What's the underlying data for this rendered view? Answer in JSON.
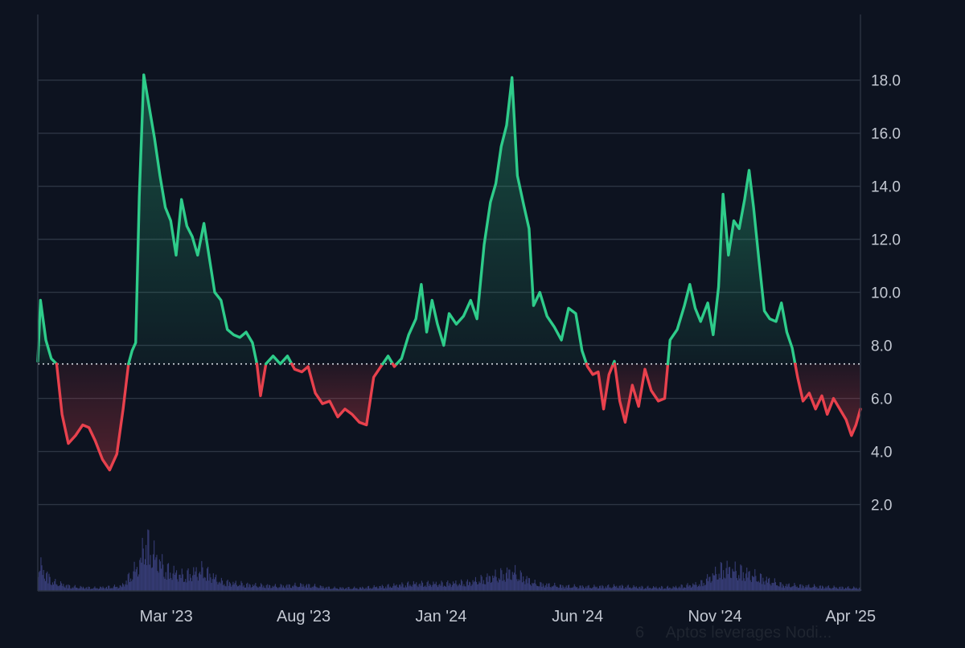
{
  "colors": {
    "background": "#0d1320",
    "above_baseline": "#2ecc8a",
    "below_baseline": "#e8414d",
    "volume": "#353b73",
    "grid": "#2d3543",
    "tick_text": "#c3c8d2"
  },
  "chart_data": {
    "type": "line",
    "subtype": "baseline-area",
    "baseline_value": 7.3,
    "y_axis_position": "right",
    "ylim": [
      0,
      20
    ],
    "y_ticks": [
      "2.0",
      "4.0",
      "6.0",
      "8.0",
      "10.0",
      "12.0",
      "14.0",
      "16.0",
      "18.0"
    ],
    "x_tick_labels": [
      "Mar '23",
      "Aug '23",
      "Jan '24",
      "Jun '24",
      "Nov '24",
      "Apr '25"
    ],
    "x_tick_months": [
      "2023-03",
      "2023-08",
      "2024-01",
      "2024-06",
      "2024-11",
      "2025-04"
    ],
    "x_range": [
      "2022-10-09",
      "2025-04-12"
    ],
    "grid": "horizontal",
    "series": [
      {
        "values_kind": "price",
        "points": [
          [
            "2022-10-09",
            7.4
          ],
          [
            "2022-10-12",
            9.7
          ],
          [
            "2022-10-18",
            8.2
          ],
          [
            "2022-10-24",
            7.5
          ],
          [
            "2022-10-30",
            7.3
          ],
          [
            "2022-11-05",
            5.4
          ],
          [
            "2022-11-12",
            4.3
          ],
          [
            "2022-11-20",
            4.6
          ],
          [
            "2022-11-28",
            5.0
          ],
          [
            "2022-12-05",
            4.9
          ],
          [
            "2022-12-12",
            4.4
          ],
          [
            "2022-12-20",
            3.7
          ],
          [
            "2022-12-28",
            3.3
          ],
          [
            "2023-01-05",
            3.9
          ],
          [
            "2023-01-12",
            5.6
          ],
          [
            "2023-01-18",
            7.3
          ],
          [
            "2023-01-22",
            7.8
          ],
          [
            "2023-01-26",
            8.1
          ],
          [
            "2023-01-30",
            13.6
          ],
          [
            "2023-02-04",
            18.2
          ],
          [
            "2023-02-10",
            17.0
          ],
          [
            "2023-02-16",
            15.8
          ],
          [
            "2023-02-22",
            14.4
          ],
          [
            "2023-02-28",
            13.2
          ],
          [
            "2023-03-06",
            12.7
          ],
          [
            "2023-03-12",
            11.4
          ],
          [
            "2023-03-18",
            13.5
          ],
          [
            "2023-03-24",
            12.5
          ],
          [
            "2023-03-30",
            12.1
          ],
          [
            "2023-04-05",
            11.4
          ],
          [
            "2023-04-12",
            12.6
          ],
          [
            "2023-04-18",
            11.3
          ],
          [
            "2023-04-24",
            10.0
          ],
          [
            "2023-05-01",
            9.7
          ],
          [
            "2023-05-08",
            8.6
          ],
          [
            "2023-05-15",
            8.4
          ],
          [
            "2023-05-22",
            8.3
          ],
          [
            "2023-05-29",
            8.5
          ],
          [
            "2023-06-05",
            8.1
          ],
          [
            "2023-06-10",
            7.3
          ],
          [
            "2023-06-14",
            6.1
          ],
          [
            "2023-06-20",
            7.3
          ],
          [
            "2023-06-28",
            7.6
          ],
          [
            "2023-07-06",
            7.3
          ],
          [
            "2023-07-14",
            7.6
          ],
          [
            "2023-07-22",
            7.1
          ],
          [
            "2023-07-30",
            7.0
          ],
          [
            "2023-08-06",
            7.2
          ],
          [
            "2023-08-14",
            6.2
          ],
          [
            "2023-08-22",
            5.8
          ],
          [
            "2023-08-30",
            5.9
          ],
          [
            "2023-09-08",
            5.3
          ],
          [
            "2023-09-16",
            5.6
          ],
          [
            "2023-09-24",
            5.4
          ],
          [
            "2023-10-02",
            5.1
          ],
          [
            "2023-10-10",
            5.0
          ],
          [
            "2023-10-18",
            6.8
          ],
          [
            "2023-10-26",
            7.2
          ],
          [
            "2023-11-03",
            7.6
          ],
          [
            "2023-11-10",
            7.2
          ],
          [
            "2023-11-18",
            7.5
          ],
          [
            "2023-11-26",
            8.4
          ],
          [
            "2023-12-04",
            9.0
          ],
          [
            "2023-12-10",
            10.3
          ],
          [
            "2023-12-16",
            8.5
          ],
          [
            "2023-12-22",
            9.7
          ],
          [
            "2023-12-28",
            8.8
          ],
          [
            "2024-01-04",
            8.0
          ],
          [
            "2024-01-10",
            9.2
          ],
          [
            "2024-01-18",
            8.8
          ],
          [
            "2024-01-26",
            9.1
          ],
          [
            "2024-02-03",
            9.7
          ],
          [
            "2024-02-10",
            9.0
          ],
          [
            "2024-02-18",
            11.8
          ],
          [
            "2024-02-25",
            13.4
          ],
          [
            "2024-03-02",
            14.1
          ],
          [
            "2024-03-08",
            15.5
          ],
          [
            "2024-03-14",
            16.3
          ],
          [
            "2024-03-20",
            18.1
          ],
          [
            "2024-03-26",
            14.4
          ],
          [
            "2024-04-02",
            13.3
          ],
          [
            "2024-04-08",
            12.4
          ],
          [
            "2024-04-13",
            9.5
          ],
          [
            "2024-04-20",
            10.0
          ],
          [
            "2024-04-28",
            9.1
          ],
          [
            "2024-05-06",
            8.7
          ],
          [
            "2024-05-14",
            8.2
          ],
          [
            "2024-05-22",
            9.4
          ],
          [
            "2024-05-30",
            9.2
          ],
          [
            "2024-06-06",
            7.8
          ],
          [
            "2024-06-12",
            7.2
          ],
          [
            "2024-06-18",
            6.9
          ],
          [
            "2024-06-24",
            7.0
          ],
          [
            "2024-06-30",
            5.6
          ],
          [
            "2024-07-06",
            6.9
          ],
          [
            "2024-07-12",
            7.4
          ],
          [
            "2024-07-18",
            5.9
          ],
          [
            "2024-07-24",
            5.1
          ],
          [
            "2024-08-01",
            6.5
          ],
          [
            "2024-08-08",
            5.7
          ],
          [
            "2024-08-15",
            7.1
          ],
          [
            "2024-08-22",
            6.3
          ],
          [
            "2024-08-30",
            5.9
          ],
          [
            "2024-09-06",
            6.0
          ],
          [
            "2024-09-12",
            8.2
          ],
          [
            "2024-09-20",
            8.6
          ],
          [
            "2024-09-28",
            9.5
          ],
          [
            "2024-10-04",
            10.3
          ],
          [
            "2024-10-10",
            9.4
          ],
          [
            "2024-10-16",
            8.9
          ],
          [
            "2024-10-24",
            9.6
          ],
          [
            "2024-10-30",
            8.4
          ],
          [
            "2024-11-05",
            10.2
          ],
          [
            "2024-11-10",
            13.7
          ],
          [
            "2024-11-16",
            11.4
          ],
          [
            "2024-11-22",
            12.7
          ],
          [
            "2024-11-28",
            12.4
          ],
          [
            "2024-12-04",
            13.5
          ],
          [
            "2024-12-09",
            14.6
          ],
          [
            "2024-12-14",
            13.2
          ],
          [
            "2024-12-20",
            11.2
          ],
          [
            "2024-12-26",
            9.3
          ],
          [
            "2025-01-01",
            9.0
          ],
          [
            "2025-01-08",
            8.9
          ],
          [
            "2025-01-14",
            9.6
          ],
          [
            "2025-01-20",
            8.5
          ],
          [
            "2025-01-26",
            7.9
          ],
          [
            "2025-02-01",
            6.8
          ],
          [
            "2025-02-07",
            5.9
          ],
          [
            "2025-02-14",
            6.2
          ],
          [
            "2025-02-21",
            5.6
          ],
          [
            "2025-02-28",
            6.1
          ],
          [
            "2025-03-06",
            5.4
          ],
          [
            "2025-03-13",
            6.0
          ],
          [
            "2025-03-20",
            5.6
          ],
          [
            "2025-03-27",
            5.2
          ],
          [
            "2025-04-02",
            4.6
          ],
          [
            "2025-04-07",
            5.0
          ],
          [
            "2025-04-12",
            5.6
          ]
        ]
      },
      {
        "values_kind": "volume",
        "scale": "relative",
        "points": [
          [
            "2022-10-09",
            0.45
          ],
          [
            "2022-10-25",
            0.15
          ],
          [
            "2022-11-15",
            0.07
          ],
          [
            "2022-12-10",
            0.05
          ],
          [
            "2023-01-10",
            0.08
          ],
          [
            "2023-01-30",
            0.45
          ],
          [
            "2023-02-05",
            0.85
          ],
          [
            "2023-02-15",
            0.6
          ],
          [
            "2023-03-01",
            0.35
          ],
          [
            "2023-03-20",
            0.25
          ],
          [
            "2023-04-10",
            0.35
          ],
          [
            "2023-05-01",
            0.15
          ],
          [
            "2023-06-01",
            0.1
          ],
          [
            "2023-07-01",
            0.08
          ],
          [
            "2023-08-01",
            0.1
          ],
          [
            "2023-09-01",
            0.05
          ],
          [
            "2023-10-01",
            0.05
          ],
          [
            "2023-11-01",
            0.08
          ],
          [
            "2023-12-01",
            0.12
          ],
          [
            "2024-01-01",
            0.12
          ],
          [
            "2024-02-01",
            0.14
          ],
          [
            "2024-03-01",
            0.25
          ],
          [
            "2024-03-20",
            0.32
          ],
          [
            "2024-04-15",
            0.12
          ],
          [
            "2024-05-15",
            0.08
          ],
          [
            "2024-06-15",
            0.07
          ],
          [
            "2024-07-15",
            0.08
          ],
          [
            "2024-08-15",
            0.06
          ],
          [
            "2024-09-15",
            0.06
          ],
          [
            "2024-10-15",
            0.12
          ],
          [
            "2024-11-10",
            0.38
          ],
          [
            "2024-12-01",
            0.32
          ],
          [
            "2024-12-15",
            0.25
          ],
          [
            "2025-01-15",
            0.1
          ],
          [
            "2025-02-15",
            0.08
          ],
          [
            "2025-03-15",
            0.06
          ],
          [
            "2025-04-12",
            0.05
          ]
        ]
      }
    ]
  },
  "news_panel": {
    "rank": "6",
    "headline": "Aptos leverages Nodi..."
  }
}
